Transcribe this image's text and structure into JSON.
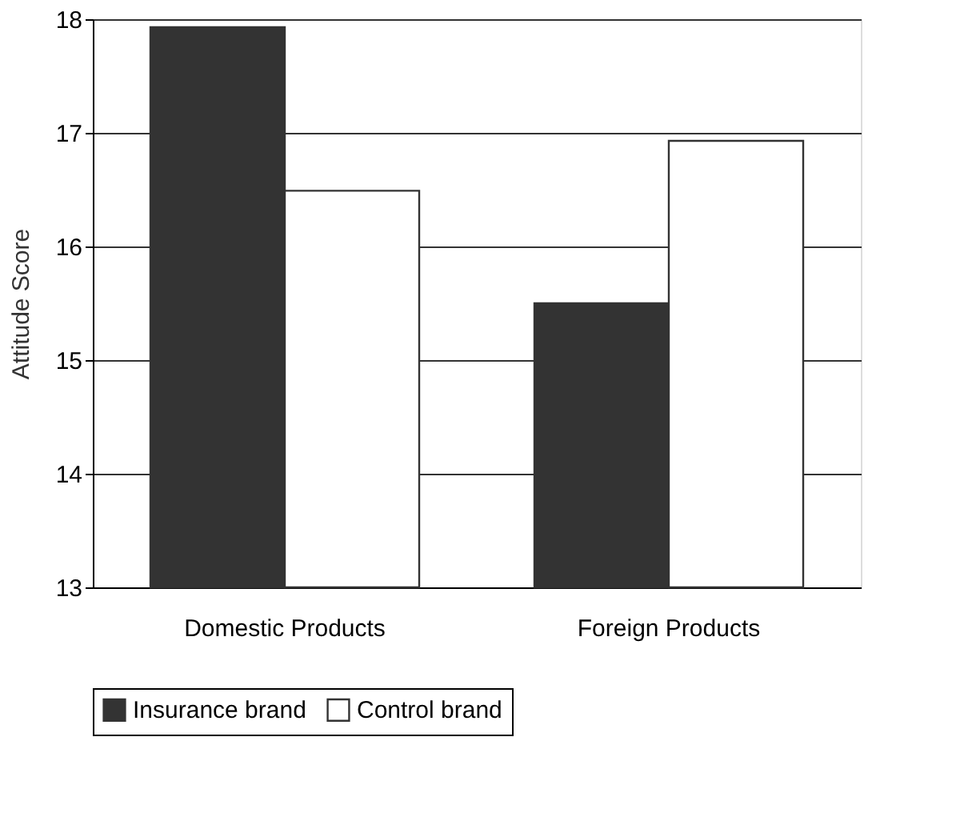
{
  "chart_data": {
    "type": "bar",
    "ylabel": "Attitude Score",
    "categories": [
      "Domestic Products",
      "Foreign Products"
    ],
    "series": [
      {
        "name": "Insurance brand",
        "color": "#333333",
        "values": [
          17.93,
          15.5
        ]
      },
      {
        "name": "Control brand",
        "color": "#ffffff",
        "values": [
          16.49,
          16.93
        ]
      }
    ],
    "ylim": [
      13,
      18
    ],
    "yticks": [
      13,
      14,
      15,
      16,
      17,
      18
    ],
    "grid": "y",
    "legend": "bottom"
  }
}
